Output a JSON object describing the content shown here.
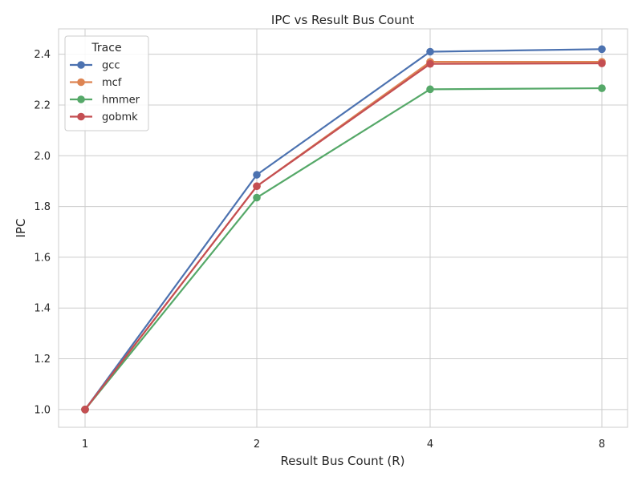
{
  "chart_data": {
    "type": "line",
    "title": "IPC vs Result Bus Count",
    "xlabel": "Result Bus Count (R)",
    "ylabel": "IPC",
    "categories": [
      "1",
      "2",
      "4",
      "8"
    ],
    "ylim": [
      0.93,
      2.5
    ],
    "yticks": [
      "1.0",
      "1.2",
      "1.4",
      "1.6",
      "1.8",
      "2.0",
      "2.2",
      "2.4"
    ],
    "grid": true,
    "legend": {
      "title": "Trace",
      "placement": "top-left"
    },
    "series": [
      {
        "name": "gcc",
        "color": "#4c72b0",
        "values": [
          1.0,
          1.925,
          2.41,
          2.42
        ]
      },
      {
        "name": "mcf",
        "color": "#dd8452",
        "values": [
          1.0,
          1.88,
          2.37,
          2.37
        ]
      },
      {
        "name": "hmmer",
        "color": "#55a868",
        "values": [
          1.0,
          1.835,
          2.262,
          2.266
        ]
      },
      {
        "name": "gobmk",
        "color": "#c44e52",
        "values": [
          1.0,
          1.88,
          2.362,
          2.364
        ]
      }
    ]
  }
}
